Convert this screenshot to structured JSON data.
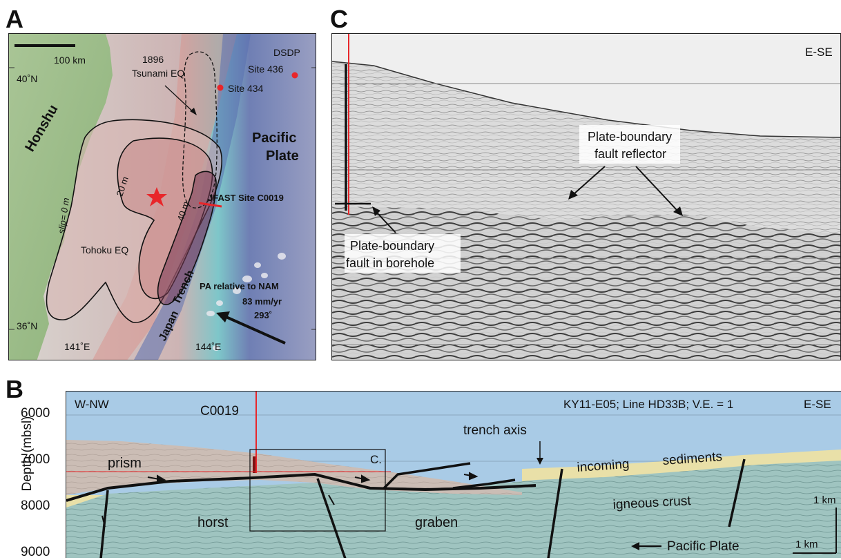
{
  "panel_labels": {
    "a": "A",
    "b": "B",
    "c": "C"
  },
  "map": {
    "scale_label": "100 km",
    "lat_top": "40˚N",
    "lat_bottom": "36˚N",
    "lon_left": "141˚E",
    "lon_right": "144˚E",
    "honshu": "Honshu",
    "pacific_plate_1": "Pacific",
    "pacific_plate_2": "Plate",
    "eq1896_1": "1896",
    "eq1896_2": "Tsunami EQ",
    "dsdp": "DSDP",
    "site436": "Site 436",
    "site434": "Site 434",
    "jfast": "JFAST Site C0019",
    "contour_20": "20 m",
    "contour_40": "40 m",
    "slip0": "slip= 0 m",
    "tohoku": "Tohoku EQ",
    "trench_1": "Japan",
    "trench_2": "Trench",
    "pa_rel": "PA relative to NAM",
    "rate": "83 mm/yr",
    "azimuth": "293˚",
    "colors": {
      "land": "#9dbf8a",
      "slip_zone": "#c98a8a",
      "high_slip": "#7a3a55",
      "star": "#e8262a"
    }
  },
  "seismic": {
    "direction": "E-SE",
    "pbf_reflector_1": "Plate-boundary",
    "pbf_reflector_2": "fault reflector",
    "pbf_borehole_1": "Plate-boundary",
    "pbf_borehole_2": "fault in borehole"
  },
  "section": {
    "ylabel": "Depth (mbsl)",
    "yticks": [
      "6000",
      "7000",
      "8000",
      "9000"
    ],
    "left_dir": "W-NW",
    "site": "C0019",
    "line_info": "KY11-E05; Line HD33B; V.E. = 1",
    "right_dir": "E-SE",
    "trench_axis": "trench axis",
    "box_label": "C.",
    "prism": "prism",
    "incoming": "incoming",
    "sediments": "sediments",
    "horst": "horst",
    "graben": "graben",
    "igneous": "igneous crust",
    "pacific": "Pacific Plate",
    "scale_v": "1 km",
    "scale_h": "1 km",
    "colors": {
      "water": "#a9cbe6",
      "prism": "#cbbdb5",
      "sediment": "#e9e0a8",
      "crust": "#9fc4c0"
    }
  }
}
